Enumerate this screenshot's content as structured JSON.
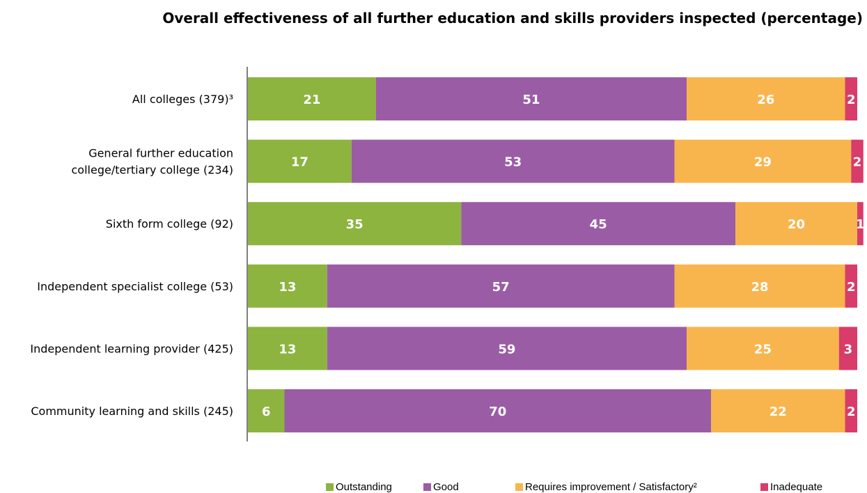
{
  "chart_data": {
    "type": "bar",
    "orientation": "horizontal",
    "stacked": true,
    "title": "Overall effectiveness of all further education and skills providers inspected (percentage)",
    "categories": [
      [
        "All colleges (379)³"
      ],
      [
        "General further education",
        "college/tertiary college (234)"
      ],
      [
        "Sixth form college (92)"
      ],
      [
        "Independent specialist college (53)"
      ],
      [
        "Independent learning provider (425)"
      ],
      [
        "Community learning and skills (245)"
      ]
    ],
    "series": [
      {
        "name": "Outstanding",
        "color": "#8cb43f",
        "values": [
          21,
          17,
          35,
          13,
          13,
          6
        ]
      },
      {
        "name": "Good",
        "color": "#9b5ca6",
        "values": [
          51,
          53,
          45,
          57,
          59,
          70
        ]
      },
      {
        "name": "Requires improvement / Satisfactory²",
        "color": "#f9b54d",
        "values": [
          26,
          29,
          20,
          28,
          25,
          22
        ]
      },
      {
        "name": "Inadequate",
        "color": "#d83c6a",
        "values": [
          2,
          2,
          1,
          2,
          3,
          2
        ]
      }
    ],
    "xlim": [
      0,
      100
    ],
    "grid": false,
    "legend_position": "bottom"
  }
}
